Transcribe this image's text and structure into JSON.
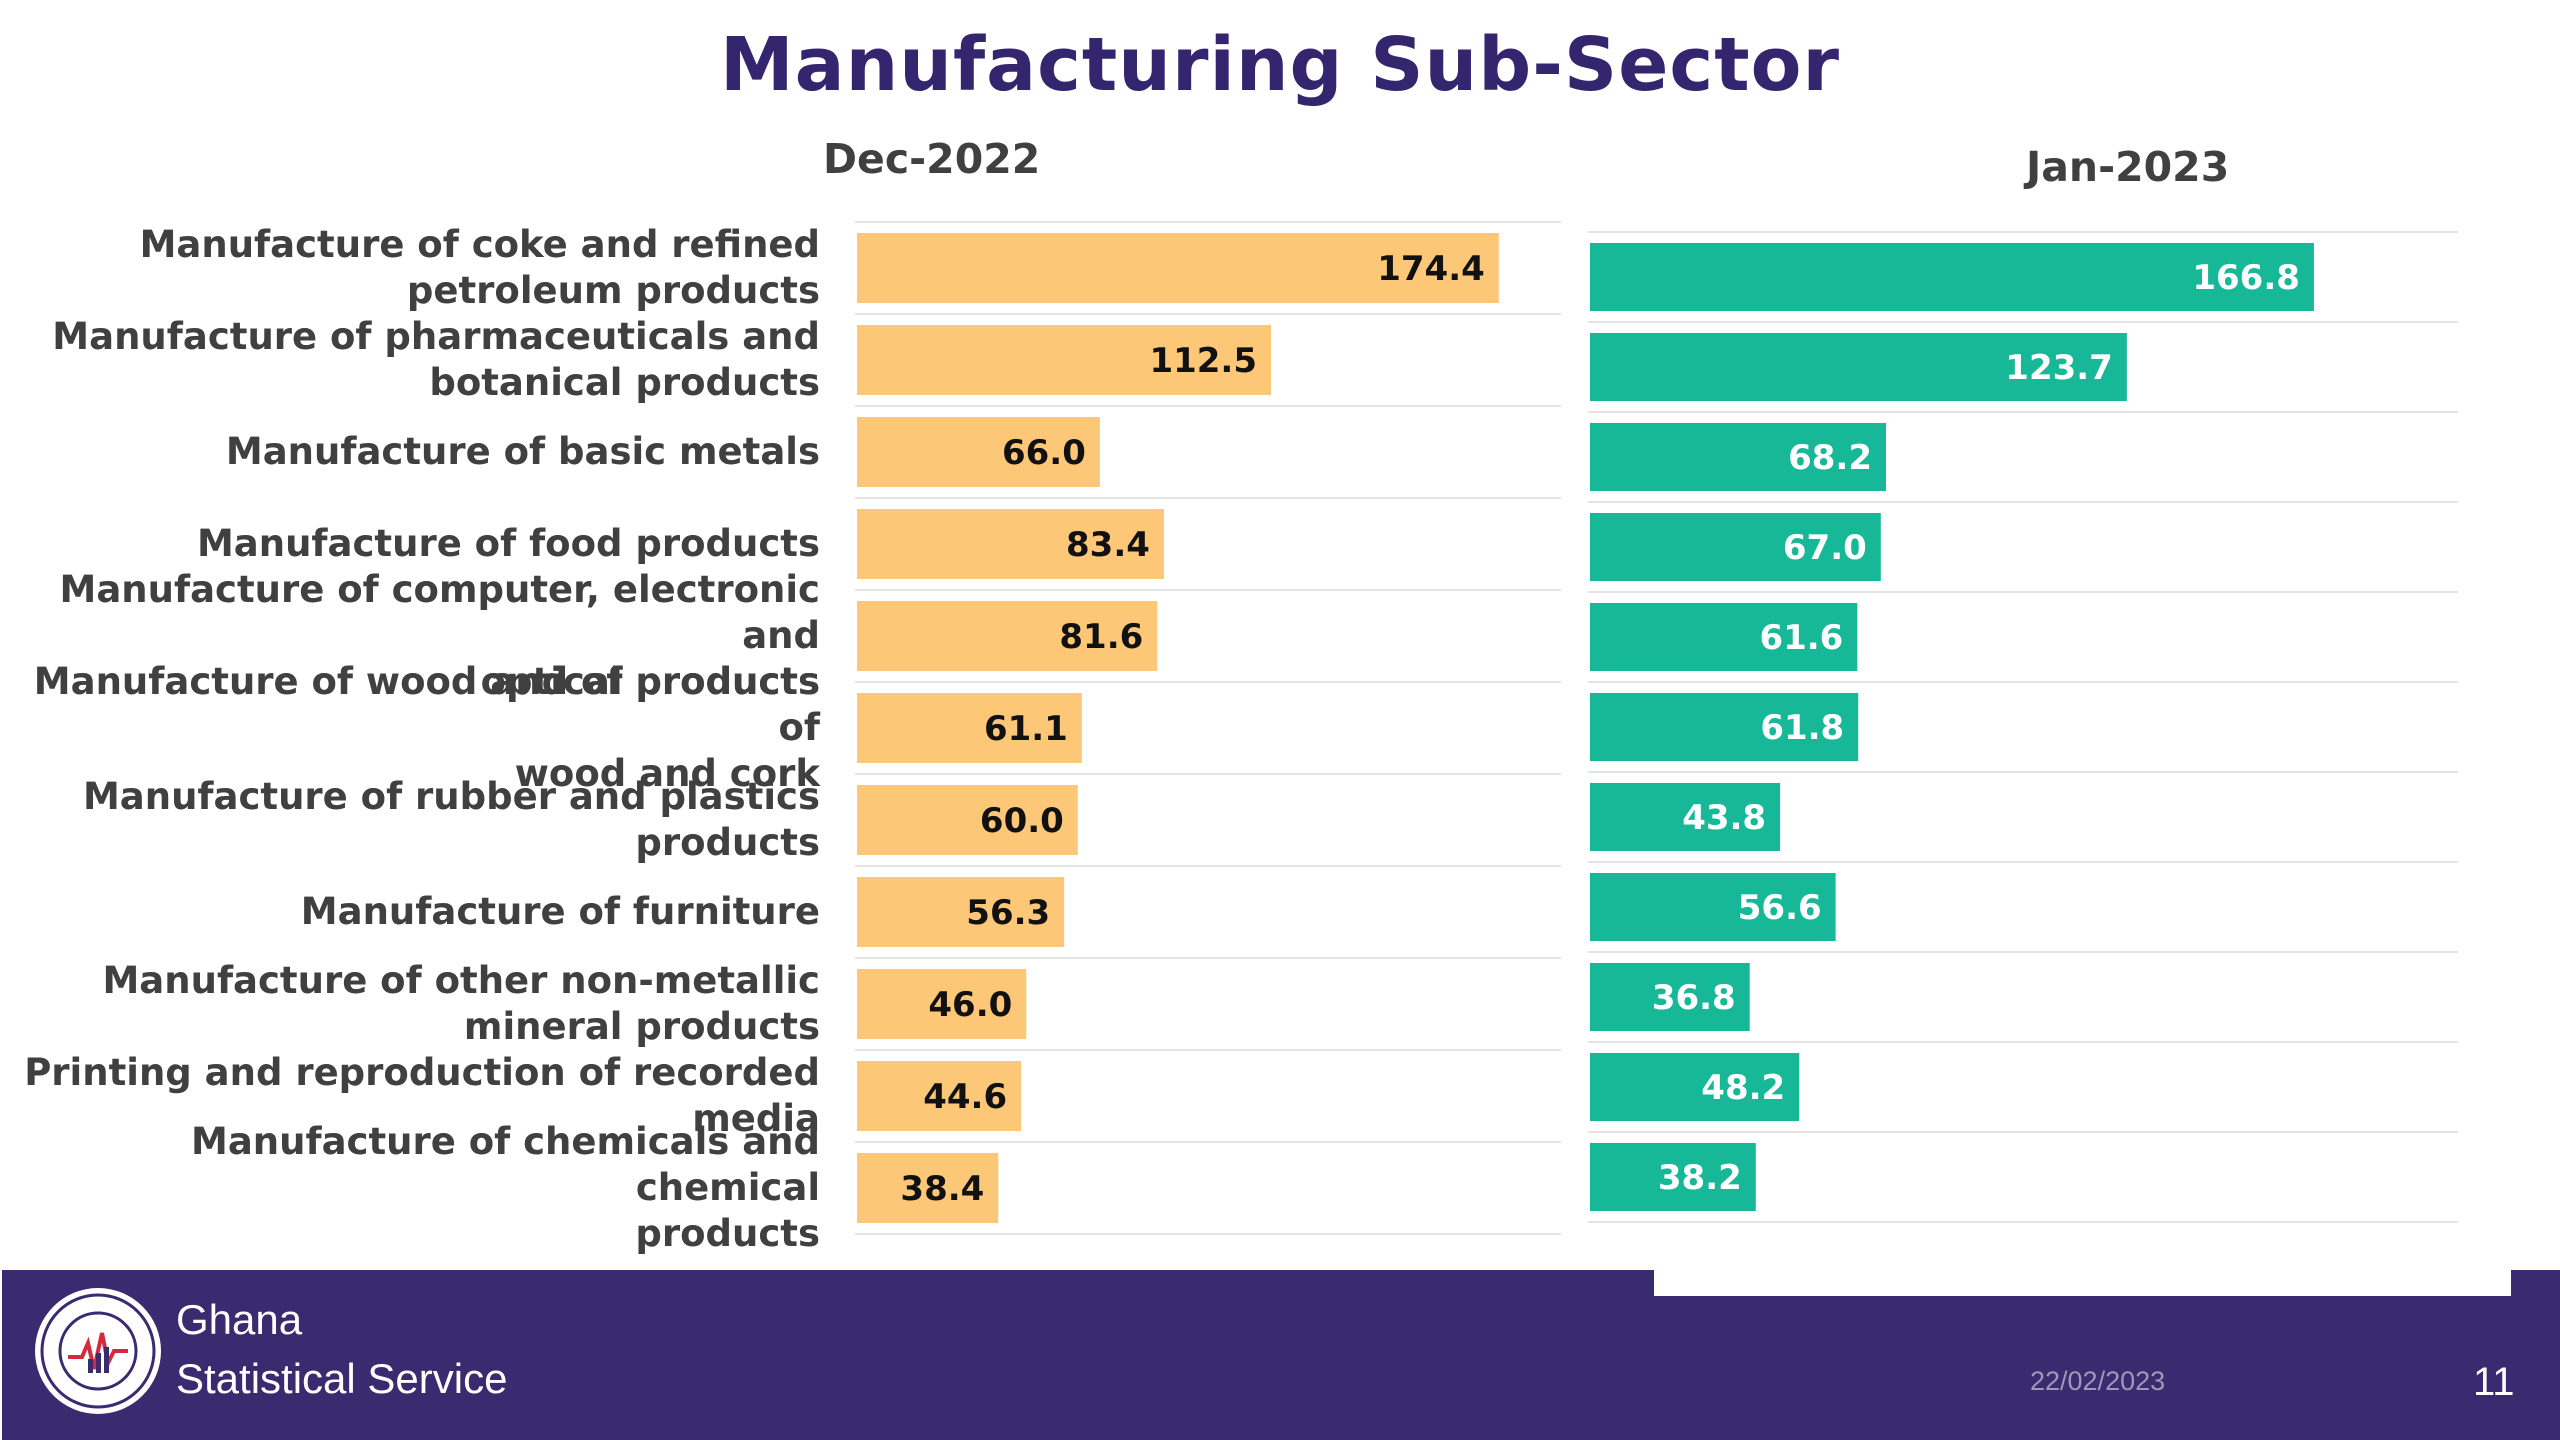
{
  "title": "Manufacturing Sub-Sector",
  "chart_data": [
    {
      "type": "bar",
      "orientation": "horizontal",
      "title": "Dec-2022",
      "color": "#fdc778",
      "xlim": [
        0,
        200
      ],
      "categories": [
        "Manufacture of coke and refined petroleum products",
        "Manufacture of pharmaceuticals and botanical products",
        "Manufacture of basic metals",
        "Manufacture of food products",
        "Manufacture of computer, electronic and optical products",
        "Manufacture of wood and of products of wood and cork",
        "Manufacture of rubber and plastics products",
        "Manufacture of furniture",
        "Manufacture of other non-metallic mineral products",
        "Printing and reproduction of recorded media",
        "Manufacture of chemicals and chemical products"
      ],
      "values": [
        174.4,
        112.5,
        66.0,
        83.4,
        81.6,
        61.1,
        60.0,
        56.3,
        46.0,
        44.6,
        38.4
      ],
      "value_labels": [
        "174.4",
        "112.5",
        "66.0",
        "83.4",
        "81.6",
        "61.1",
        "60.0",
        "56.3",
        "46.0",
        "44.6",
        "38.4"
      ]
    },
    {
      "type": "bar",
      "orientation": "horizontal",
      "title": "Jan-2023",
      "color": "#17b898",
      "xlim": [
        0,
        200
      ],
      "categories": [
        "Manufacture of coke and refined petroleum products",
        "Manufacture of pharmaceuticals and botanical products",
        "Manufacture of basic metals",
        "Manufacture of food products",
        "Manufacture of computer, electronic and optical products",
        "Manufacture of wood and of products of wood and cork",
        "Manufacture of rubber and plastics products",
        "Manufacture of furniture",
        "Manufacture of other non-metallic mineral products",
        "Printing and reproduction of recorded media",
        "Manufacture of chemicals and chemical products"
      ],
      "values": [
        166.8,
        123.7,
        68.2,
        67.0,
        61.6,
        61.8,
        43.8,
        56.6,
        36.8,
        48.2,
        38.2
      ],
      "value_labels": [
        "166.8",
        "123.7",
        "68.2",
        "67.0",
        "61.6",
        "61.8",
        "43.8",
        "56.6",
        "36.8",
        "48.2",
        "38.2"
      ]
    }
  ],
  "category_labels": [
    [
      "Manufacture of coke and refined",
      "petroleum products"
    ],
    [
      "Manufacture of pharmaceuticals and",
      "botanical products"
    ],
    [
      "Manufacture of basic metals"
    ],
    [
      "Manufacture of food products"
    ],
    [
      "Manufacture of computer, electronic and",
      "optical products"
    ],
    [
      "Manufacture of wood and of products of",
      "wood and cork"
    ],
    [
      "Manufacture of rubber and plastics",
      "products"
    ],
    [
      "Manufacture of furniture"
    ],
    [
      "Manufacture of other non-metallic",
      "mineral products"
    ],
    [
      "Printing and reproduction of recorded",
      "media"
    ],
    [
      "Manufacture of chemicals and chemical",
      "products"
    ]
  ],
  "footer": {
    "org_line1": "Ghana",
    "org_line2": "Statistical Service",
    "date": "22/02/2023",
    "page_number": "11",
    "logo_icon": "ghana-statistical-service-seal-icon"
  }
}
